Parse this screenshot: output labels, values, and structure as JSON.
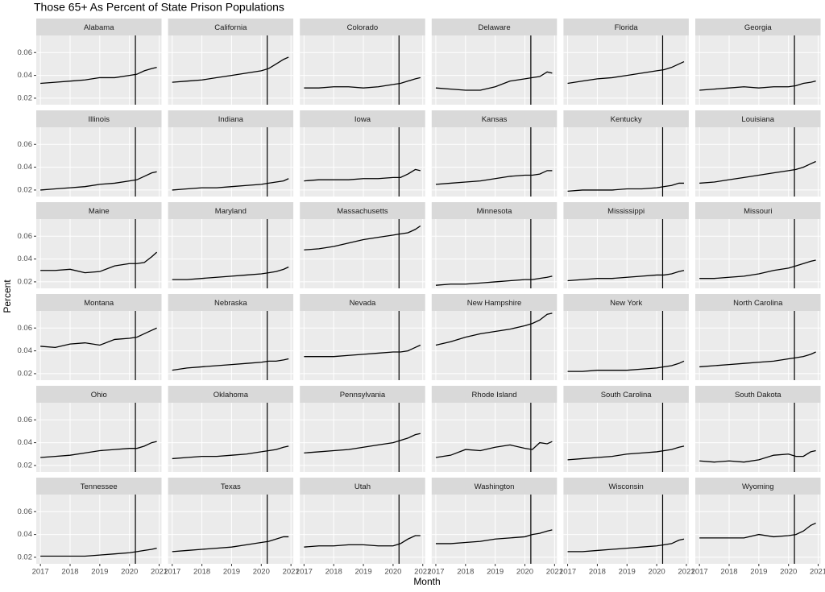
{
  "chart_data": {
    "type": "line",
    "title": "Those 65+ As Percent of State Prison Populations",
    "xlabel": "Month",
    "ylabel": "Percent",
    "x": [
      2017,
      2017.5,
      2018,
      2018.5,
      2019,
      2019.5,
      2020,
      2020.25,
      2020.5,
      2020.75,
      2020.92
    ],
    "xlim": [
      2016.86,
      2021.08
    ],
    "xticks": [
      2017,
      2018,
      2019,
      2020,
      2021
    ],
    "ylim": [
      0.0143,
      0.075
    ],
    "yticks": [
      0.02,
      0.04,
      0.06
    ],
    "vline_x": 2020.2,
    "grid": true,
    "series": [
      {
        "name": "Alabama",
        "color": "#000000",
        "values": [
          0.033,
          0.034,
          0.035,
          0.036,
          0.038,
          0.038,
          0.04,
          0.041,
          0.044,
          0.046,
          0.047
        ]
      },
      {
        "name": "California",
        "color": "#000000",
        "values": [
          0.034,
          0.035,
          0.036,
          0.038,
          0.04,
          0.042,
          0.044,
          0.046,
          0.05,
          0.054,
          0.056
        ]
      },
      {
        "name": "Colorado",
        "color": "#000000",
        "values": [
          0.029,
          0.029,
          0.03,
          0.03,
          0.029,
          0.03,
          0.032,
          0.033,
          0.035,
          0.037,
          0.038
        ]
      },
      {
        "name": "Delaware",
        "color": "#000000",
        "values": [
          0.029,
          0.028,
          0.027,
          0.027,
          0.03,
          0.035,
          0.037,
          0.038,
          0.039,
          0.043,
          0.042
        ]
      },
      {
        "name": "Florida",
        "color": "#000000",
        "values": [
          0.033,
          0.035,
          0.037,
          0.038,
          0.04,
          0.042,
          0.044,
          0.045,
          0.047,
          0.05,
          0.052
        ]
      },
      {
        "name": "Georgia",
        "color": "#000000",
        "values": [
          0.027,
          0.028,
          0.029,
          0.03,
          0.029,
          0.03,
          0.03,
          0.031,
          0.033,
          0.034,
          0.035
        ]
      },
      {
        "name": "Illinois",
        "color": "#000000",
        "values": [
          0.02,
          0.021,
          0.022,
          0.023,
          0.025,
          0.026,
          0.028,
          0.029,
          0.032,
          0.035,
          0.036
        ]
      },
      {
        "name": "Indiana",
        "color": "#000000",
        "values": [
          0.02,
          0.021,
          0.022,
          0.022,
          0.023,
          0.024,
          0.025,
          0.026,
          0.027,
          0.028,
          0.03
        ]
      },
      {
        "name": "Iowa",
        "color": "#000000",
        "values": [
          0.028,
          0.029,
          0.029,
          0.029,
          0.03,
          0.03,
          0.031,
          0.031,
          0.034,
          0.038,
          0.037
        ]
      },
      {
        "name": "Kansas",
        "color": "#000000",
        "values": [
          0.025,
          0.026,
          0.027,
          0.028,
          0.03,
          0.032,
          0.033,
          0.033,
          0.034,
          0.037,
          0.037
        ]
      },
      {
        "name": "Kentucky",
        "color": "#000000",
        "values": [
          0.019,
          0.02,
          0.02,
          0.02,
          0.021,
          0.021,
          0.022,
          0.023,
          0.024,
          0.026,
          0.026
        ]
      },
      {
        "name": "Louisiana",
        "color": "#000000",
        "values": [
          0.026,
          0.027,
          0.029,
          0.031,
          0.033,
          0.035,
          0.037,
          0.038,
          0.04,
          0.043,
          0.045
        ]
      },
      {
        "name": "Maine",
        "color": "#000000",
        "values": [
          0.03,
          0.03,
          0.031,
          0.028,
          0.029,
          0.034,
          0.036,
          0.036,
          0.037,
          0.042,
          0.046
        ]
      },
      {
        "name": "Maryland",
        "color": "#000000",
        "values": [
          0.022,
          0.022,
          0.023,
          0.024,
          0.025,
          0.026,
          0.027,
          0.028,
          0.029,
          0.031,
          0.033
        ]
      },
      {
        "name": "Massachusetts",
        "color": "#000000",
        "values": [
          0.048,
          0.049,
          0.051,
          0.054,
          0.057,
          0.059,
          0.061,
          0.062,
          0.063,
          0.066,
          0.069
        ]
      },
      {
        "name": "Minnesota",
        "color": "#000000",
        "values": [
          0.017,
          0.018,
          0.018,
          0.019,
          0.02,
          0.021,
          0.022,
          0.022,
          0.023,
          0.024,
          0.025
        ]
      },
      {
        "name": "Mississippi",
        "color": "#000000",
        "values": [
          0.021,
          0.022,
          0.023,
          0.023,
          0.024,
          0.025,
          0.026,
          0.026,
          0.027,
          0.029,
          0.03
        ]
      },
      {
        "name": "Missouri",
        "color": "#000000",
        "values": [
          0.023,
          0.023,
          0.024,
          0.025,
          0.027,
          0.03,
          0.032,
          0.034,
          0.036,
          0.038,
          0.039
        ]
      },
      {
        "name": "Montana",
        "color": "#000000",
        "values": [
          0.044,
          0.043,
          0.046,
          0.047,
          0.045,
          0.05,
          0.051,
          0.052,
          0.055,
          0.058,
          0.06
        ]
      },
      {
        "name": "Nebraska",
        "color": "#000000",
        "values": [
          0.023,
          0.025,
          0.026,
          0.027,
          0.028,
          0.029,
          0.03,
          0.031,
          0.031,
          0.032,
          0.033
        ]
      },
      {
        "name": "Nevada",
        "color": "#000000",
        "values": [
          0.035,
          0.035,
          0.035,
          0.036,
          0.037,
          0.038,
          0.039,
          0.039,
          0.04,
          0.043,
          0.045
        ]
      },
      {
        "name": "New Hampshire",
        "color": "#000000",
        "values": [
          0.045,
          0.048,
          0.052,
          0.055,
          0.057,
          0.059,
          0.062,
          0.064,
          0.067,
          0.072,
          0.073
        ]
      },
      {
        "name": "New York",
        "color": "#000000",
        "values": [
          0.022,
          0.022,
          0.023,
          0.023,
          0.023,
          0.024,
          0.025,
          0.026,
          0.027,
          0.029,
          0.031
        ]
      },
      {
        "name": "North Carolina",
        "color": "#000000",
        "values": [
          0.026,
          0.027,
          0.028,
          0.029,
          0.03,
          0.031,
          0.033,
          0.034,
          0.035,
          0.037,
          0.039
        ]
      },
      {
        "name": "Ohio",
        "color": "#000000",
        "values": [
          0.027,
          0.028,
          0.029,
          0.031,
          0.033,
          0.034,
          0.035,
          0.035,
          0.037,
          0.04,
          0.041
        ]
      },
      {
        "name": "Oklahoma",
        "color": "#000000",
        "values": [
          0.026,
          0.027,
          0.028,
          0.028,
          0.029,
          0.03,
          0.032,
          0.033,
          0.034,
          0.036,
          0.037
        ]
      },
      {
        "name": "Pennsylvania",
        "color": "#000000",
        "values": [
          0.031,
          0.032,
          0.033,
          0.034,
          0.036,
          0.038,
          0.04,
          0.042,
          0.044,
          0.047,
          0.048
        ]
      },
      {
        "name": "Rhode Island",
        "color": "#000000",
        "values": [
          0.027,
          0.029,
          0.034,
          0.033,
          0.036,
          0.038,
          0.035,
          0.034,
          0.04,
          0.039,
          0.041
        ]
      },
      {
        "name": "South Carolina",
        "color": "#000000",
        "values": [
          0.025,
          0.026,
          0.027,
          0.028,
          0.03,
          0.031,
          0.032,
          0.033,
          0.034,
          0.036,
          0.037
        ]
      },
      {
        "name": "South Dakota",
        "color": "#000000",
        "values": [
          0.024,
          0.023,
          0.024,
          0.023,
          0.025,
          0.029,
          0.03,
          0.028,
          0.028,
          0.032,
          0.033
        ]
      },
      {
        "name": "Tennessee",
        "color": "#000000",
        "values": [
          0.021,
          0.021,
          0.021,
          0.021,
          0.022,
          0.023,
          0.024,
          0.025,
          0.026,
          0.027,
          0.028
        ]
      },
      {
        "name": "Texas",
        "color": "#000000",
        "values": [
          0.025,
          0.026,
          0.027,
          0.028,
          0.029,
          0.031,
          0.033,
          0.034,
          0.036,
          0.038,
          0.038
        ]
      },
      {
        "name": "Utah",
        "color": "#000000",
        "values": [
          0.029,
          0.03,
          0.03,
          0.031,
          0.031,
          0.03,
          0.03,
          0.032,
          0.036,
          0.039,
          0.039
        ]
      },
      {
        "name": "Washington",
        "color": "#000000",
        "values": [
          0.032,
          0.032,
          0.033,
          0.034,
          0.036,
          0.037,
          0.038,
          0.04,
          0.041,
          0.043,
          0.044
        ]
      },
      {
        "name": "Wisconsin",
        "color": "#000000",
        "values": [
          0.025,
          0.025,
          0.026,
          0.027,
          0.028,
          0.029,
          0.03,
          0.031,
          0.032,
          0.035,
          0.036
        ]
      },
      {
        "name": "Wyoming",
        "color": "#000000",
        "values": [
          0.037,
          0.037,
          0.037,
          0.037,
          0.04,
          0.038,
          0.039,
          0.04,
          0.043,
          0.048,
          0.05
        ]
      }
    ]
  }
}
